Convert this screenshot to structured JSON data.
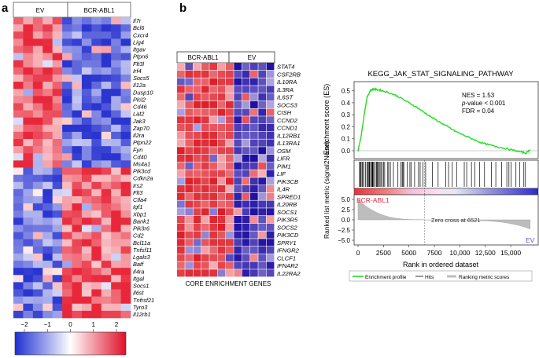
{
  "panel_a": {
    "letter": "a",
    "group_ev": "EV",
    "group_bcr": "BCR-ABL1",
    "genes": [
      "Il7r",
      "Bcl6",
      "Cxcr4",
      "Lig4",
      "Itgav",
      "Ptpn6",
      "Flt3l",
      "Irf4",
      "Socs5",
      "Il12a",
      "Dusp10",
      "Plcl2",
      "Cd46",
      "Lat2",
      "Jak3",
      "Zap70",
      "Il2ra",
      "Ptpn22",
      "Fyn",
      "Cd40",
      "Ms4a1",
      "Pik3cd",
      "Cdkn2a",
      "Irs2",
      "Flt3",
      "Ctla4",
      "Igf1",
      "Xbp1",
      "Bank1",
      "Pik3r6",
      "Cd2",
      "Bcl11a",
      "Tnfsf11",
      "Lgals3",
      "Batf",
      "Il4ra",
      "Itgal",
      "Socs1",
      "Il6st",
      "Tnfrsf21",
      "Tyro3",
      "Il12rb1"
    ],
    "n_down": 21,
    "scale_ticks": [
      "−2",
      "−1",
      "0",
      "1",
      "2"
    ],
    "colors": {
      "high": "#e8283a",
      "low": "#2a35d0",
      "mid": "#ffffff"
    }
  },
  "panel_b": {
    "letter": "b",
    "group_bcr": "BCR-ABL1",
    "group_ev": "EV",
    "genes": [
      "STAT4",
      "CSF2RB",
      "IL10RA",
      "IL3RA",
      "IL6ST",
      "SOCS3",
      "CISH",
      "CCND2",
      "CCND1",
      "IL12RB1",
      "IL13RA1",
      "OSM",
      "LIFR",
      "PIM1",
      "LIF",
      "PIK3CB",
      "IL4R",
      "SPRED1",
      "IL20RB",
      "SOCS1",
      "PIK3R5",
      "SOCS2",
      "PIK3CD",
      "SPRY1",
      "IFNGR2",
      "CLCF1",
      "IFNAR2",
      "IL22RA2"
    ],
    "caption": "CORE ENRICHMENT GENES",
    "colors": {
      "high": "#e8282a",
      "low": "#1a0fa0"
    }
  },
  "gsea": {
    "title": "KEGG_JAK_STAT_SIGNALING_PATHWAY",
    "es_ylabel": "Enrichment score (ES)",
    "es_ticks": [
      "0.5",
      "0.4",
      "0.3",
      "0.2",
      "0.1",
      "0.0"
    ],
    "nes": "NES = 1.53",
    "pvalue_prefix": "p",
    "pvalue_rest": "-value < 0.001",
    "fdr": "FDR = 0.04",
    "metric_ylabel": "Ranked list metric (signal2Noise)",
    "metric_ticks": [
      "5.0",
      "2.5",
      "0.0",
      "−2.5",
      "−5.0"
    ],
    "bcr_label": "BCR-ABL1",
    "ev_label": "EV",
    "zero_cross": "Zero cross at 6521",
    "x_ticks": [
      "0",
      "2500",
      "5000",
      "7500",
      "10,000",
      "12,500",
      "15,000"
    ],
    "xlabel": "Rank in ordered dataset",
    "legend": {
      "profile": "Enrichment profile",
      "hits": "Hits",
      "metric": "Ranking metric scores"
    },
    "colors": {
      "profile": "#22dd22",
      "hits": "#000000",
      "metric": "#bdbdbd"
    }
  },
  "chart_data": {
    "type": "line",
    "title": "KEGG_JAK_STAT_SIGNALING_PATHWAY",
    "xlabel": "Rank in ordered dataset",
    "ylabel": "Enrichment score (ES)",
    "xlim": [
      0,
      17000
    ],
    "ylim": [
      -0.05,
      0.55
    ],
    "series": [
      {
        "name": "Enrichment profile",
        "x": [
          0,
          300,
          600,
          900,
          1200,
          1500,
          1800,
          2200,
          2800,
          3500,
          4200,
          5000,
          5800,
          6500,
          7200,
          8000,
          8800,
          9600,
          10400,
          11200,
          12000,
          12800,
          13600,
          14400,
          15200,
          16000,
          16500,
          16900
        ],
        "values": [
          0,
          0.12,
          0.3,
          0.45,
          0.5,
          0.515,
          0.51,
          0.505,
          0.49,
          0.47,
          0.44,
          0.4,
          0.36,
          0.32,
          0.28,
          0.24,
          0.2,
          0.16,
          0.13,
          0.1,
          0.07,
          0.05,
          0.035,
          0.02,
          0.005,
          -0.01,
          -0.02,
          0.01
        ]
      }
    ]
  }
}
